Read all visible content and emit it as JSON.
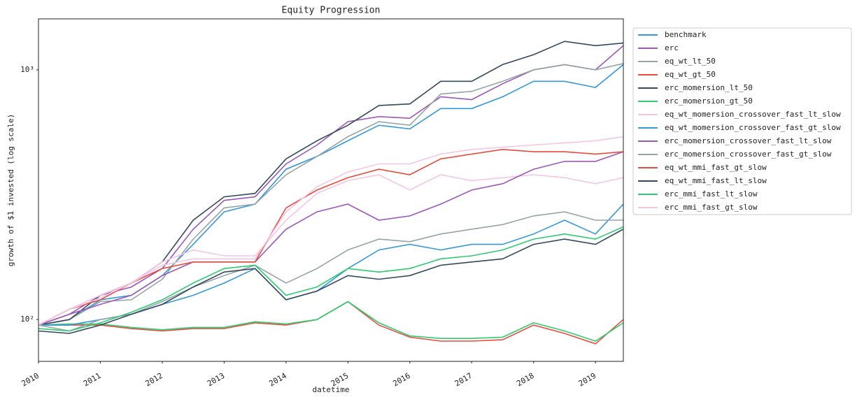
{
  "chart_data": {
    "type": "line",
    "title": "Equity Progression",
    "x_label": "datetime",
    "y_label": "growth of $1 invested (log scale)",
    "log_y": true,
    "grid": false,
    "legend": "outside-right",
    "x": [
      2010,
      2010.5,
      2011,
      2011.5,
      2012,
      2012.5,
      2013,
      2013.5,
      2014,
      2014.5,
      2015,
      2015.5,
      2016,
      2016.5,
      2017,
      2017.5,
      2018,
      2018.5,
      2019,
      2019.45
    ],
    "xlim": [
      2010,
      2019.45
    ],
    "xticks": [
      2010,
      2011,
      2012,
      2013,
      2014,
      2015,
      2016,
      2017,
      2018,
      2019
    ],
    "ylim": [
      68,
      1600
    ],
    "yticks": [
      {
        "value": 100,
        "label": "10²"
      },
      {
        "value": 1000,
        "label": "10³"
      }
    ],
    "series": [
      {
        "name": "benchmark",
        "color": "#3498db",
        "values": [
          95,
          100,
          120,
          125,
          150,
          200,
          270,
          290,
          400,
          450,
          520,
          600,
          580,
          700,
          700,
          780,
          900,
          900,
          850,
          1050
        ]
      },
      {
        "name": "erc",
        "color": "#9b59b6",
        "values": [
          95,
          105,
          125,
          135,
          160,
          230,
          300,
          310,
          420,
          500,
          620,
          650,
          640,
          780,
          760,
          880,
          1000,
          1050,
          1000,
          1250
        ]
      },
      {
        "name": "eq_wt_lt_50",
        "color": "#95a5a6",
        "values": [
          95,
          100,
          118,
          120,
          145,
          210,
          280,
          290,
          380,
          450,
          540,
          620,
          600,
          800,
          820,
          900,
          1000,
          1050,
          1000,
          1060
        ]
      },
      {
        "name": "eq_wt_gt_50",
        "color": "#e74c3c",
        "values": [
          95,
          95,
          95,
          92,
          90,
          92,
          92,
          97,
          95,
          100,
          118,
          95,
          85,
          82,
          82,
          83,
          95,
          88,
          80,
          100
        ]
      },
      {
        "name": "erc_momersion_lt_50",
        "color": "#34495e",
        "values": [
          95,
          100,
          125,
          140,
          170,
          250,
          310,
          320,
          440,
          520,
          600,
          720,
          730,
          900,
          900,
          1050,
          1150,
          1300,
          1250,
          1280
        ]
      },
      {
        "name": "erc_momersion_gt_50",
        "color": "#2ecc71",
        "values": [
          95,
          96,
          96,
          93,
          91,
          93,
          93,
          98,
          96,
          100,
          118,
          97,
          86,
          84,
          84,
          85,
          97,
          90,
          82,
          97
        ]
      },
      {
        "name": "eq_wt_momersion_crossover_fast_lt_slow",
        "color": "#f4c6e3",
        "values": [
          95,
          110,
          125,
          140,
          170,
          190,
          180,
          180,
          250,
          320,
          360,
          380,
          330,
          380,
          360,
          370,
          380,
          370,
          350,
          370
        ]
      },
      {
        "name": "eq_wt_momersion_crossover_fast_gt_slow",
        "color": "#3498db",
        "values": [
          95,
          95,
          100,
          105,
          115,
          125,
          140,
          160,
          120,
          130,
          160,
          190,
          200,
          190,
          200,
          200,
          220,
          250,
          220,
          290
        ]
      },
      {
        "name": "erc_momersion_crossover_fast_lt_slow",
        "color": "#9b59b6",
        "values": [
          95,
          105,
          115,
          125,
          150,
          170,
          170,
          170,
          230,
          270,
          290,
          250,
          260,
          290,
          330,
          350,
          400,
          430,
          430,
          470
        ]
      },
      {
        "name": "erc_momersion_crossover_fast_gt_slow",
        "color": "#95a5a6",
        "values": [
          95,
          90,
          100,
          105,
          118,
          135,
          150,
          165,
          140,
          160,
          190,
          210,
          205,
          220,
          230,
          240,
          260,
          270,
          250,
          250
        ]
      },
      {
        "name": "eq_wt_mmi_fast_gt_slow",
        "color": "#e74c3c",
        "values": [
          95,
          110,
          120,
          140,
          160,
          170,
          170,
          170,
          280,
          330,
          370,
          400,
          380,
          440,
          460,
          480,
          470,
          470,
          460,
          470
        ]
      },
      {
        "name": "eq_wt_mmi_fast_lt_slow",
        "color": "#34495e",
        "values": [
          90,
          88,
          95,
          105,
          115,
          135,
          155,
          160,
          120,
          130,
          150,
          145,
          150,
          165,
          170,
          175,
          200,
          210,
          200,
          230
        ]
      },
      {
        "name": "erc_mmi_fast_lt_slow",
        "color": "#2ecc71",
        "values": [
          92,
          90,
          97,
          107,
          120,
          140,
          160,
          165,
          125,
          135,
          160,
          155,
          160,
          175,
          180,
          190,
          210,
          220,
          210,
          235
        ]
      },
      {
        "name": "erc_mmi_fast_gt_slow",
        "color": "#f4c6e3",
        "values": [
          95,
          110,
          122,
          140,
          165,
          175,
          175,
          175,
          270,
          340,
          390,
          420,
          420,
          460,
          480,
          490,
          500,
          510,
          520,
          540
        ]
      }
    ]
  }
}
